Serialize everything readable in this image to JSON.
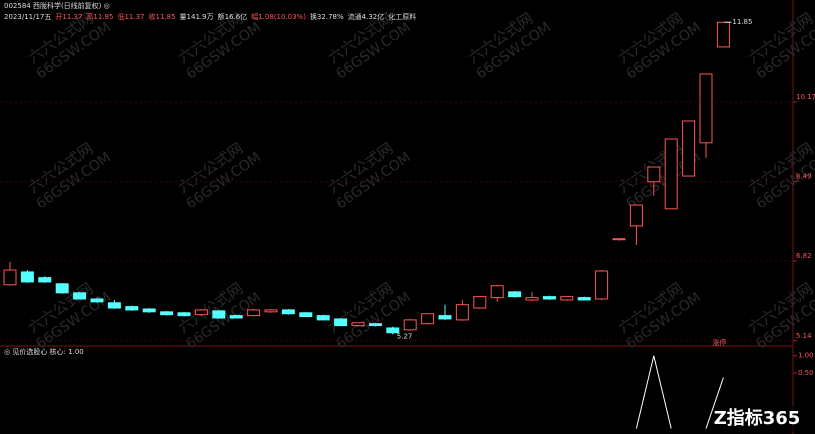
{
  "header": {
    "line1": "002584 西陇科学(日线前复权) ◎",
    "line2": [
      {
        "text": "2023/11/17五",
        "color": "#dddddd"
      },
      {
        "text": "开11.37",
        "color": "#ff5555"
      },
      {
        "text": "高11.85",
        "color": "#ff5555"
      },
      {
        "text": "低11.37",
        "color": "#ff5555"
      },
      {
        "text": "收11.85",
        "color": "#ff5555"
      },
      {
        "text": "量141.9万",
        "color": "#dddddd"
      },
      {
        "text": "额16.6亿",
        "color": "#dddddd"
      },
      {
        "text": "幅1.08(10.03%)",
        "color": "#ff5555"
      },
      {
        "text": "换32.78%",
        "color": "#dddddd"
      },
      {
        "text": "流通4.32亿",
        "color": "#dddddd"
      },
      {
        "text": "化工原料",
        "color": "#dddddd"
      }
    ]
  },
  "watermark": [
    "六六公式网",
    "66GSW.COM"
  ],
  "logo": "Z指标365",
  "chart_data": {
    "type": "candlestick",
    "up_color": "#ff5555",
    "down_color": "#54ffff",
    "flat_color": "#ffffff",
    "open": [
      6.32,
      6.59,
      6.47,
      6.34,
      6.15,
      6.02,
      5.94,
      5.86,
      5.81,
      5.75,
      5.73,
      5.69,
      5.77,
      5.67,
      5.67,
      5.75,
      5.79,
      5.73,
      5.67,
      5.6,
      5.46,
      5.5,
      5.41,
      5.37,
      5.5,
      5.67,
      5.58,
      5.83,
      6.05,
      6.17,
      6.0,
      6.07,
      6.0,
      6.05,
      6.02,
      7.27,
      7.56,
      8.49,
      7.92,
      8.61,
      9.31,
      11.33
    ],
    "high": [
      6.8,
      6.63,
      6.5,
      6.36,
      6.17,
      6.05,
      6.0,
      5.88,
      5.83,
      5.77,
      5.75,
      5.81,
      5.79,
      5.69,
      5.81,
      5.81,
      5.81,
      5.75,
      5.69,
      5.62,
      5.52,
      5.52,
      5.44,
      5.6,
      5.71,
      5.9,
      6.0,
      6.07,
      6.32,
      6.19,
      6.17,
      6.09,
      6.07,
      6.07,
      6.63,
      7.29,
      8.0,
      8.8,
      9.39,
      9.77,
      10.76,
      11.85
    ],
    "low": [
      6.3,
      6.36,
      6.36,
      6.13,
      6.02,
      5.94,
      5.81,
      5.77,
      5.73,
      5.67,
      5.65,
      5.67,
      5.6,
      5.62,
      5.65,
      5.73,
      5.69,
      5.65,
      5.58,
      5.46,
      5.44,
      5.44,
      5.27,
      5.35,
      5.48,
      5.58,
      5.56,
      5.81,
      5.96,
      6.05,
      5.98,
      6.0,
      5.98,
      6.0,
      6.0,
      7.25,
      7.16,
      8.2,
      7.92,
      8.61,
      8.99,
      11.33
    ],
    "close": [
      6.63,
      6.38,
      6.38,
      6.15,
      6.02,
      5.96,
      5.83,
      5.79,
      5.75,
      5.69,
      5.67,
      5.79,
      5.62,
      5.62,
      5.79,
      5.79,
      5.71,
      5.65,
      5.58,
      5.46,
      5.52,
      5.46,
      5.31,
      5.58,
      5.71,
      5.6,
      5.9,
      6.07,
      6.3,
      6.07,
      6.05,
      6.02,
      6.07,
      6.0,
      6.61,
      7.29,
      8.0,
      8.8,
      9.39,
      9.77,
      10.76,
      11.85
    ],
    "ylim": [
      5.03,
      12.15
    ],
    "yticks": [
      5.14,
      6.82,
      8.49,
      10.17
    ],
    "high_label": "11.85",
    "low_label": "5.27",
    "indicator": {
      "title": "◎ 见价选股心 核心: 1.00",
      "annotation": "涨停",
      "values": [
        null,
        null,
        null,
        null,
        null,
        null,
        null,
        null,
        null,
        null,
        null,
        null,
        null,
        null,
        null,
        null,
        null,
        null,
        null,
        null,
        null,
        null,
        null,
        null,
        null,
        null,
        null,
        null,
        null,
        null,
        null,
        null,
        null,
        null,
        null,
        null,
        -1.1,
        1.0,
        -1.1,
        null,
        -1.1,
        0.37
      ],
      "ylim": [
        -1.2,
        1.05
      ],
      "yticks": [
        {
          "value": 1,
          "label": "1.00"
        },
        {
          "value": 0.5,
          "label": "0.50"
        }
      ]
    }
  }
}
